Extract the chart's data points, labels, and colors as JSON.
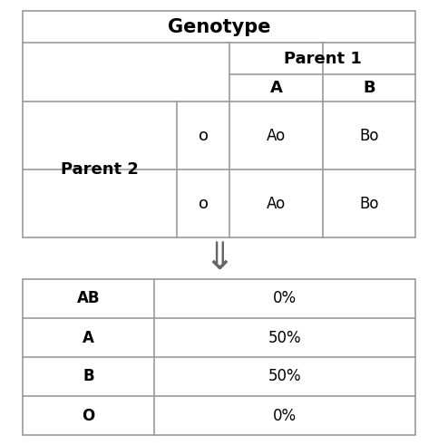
{
  "title": "Genotype",
  "parent1_label": "Parent 1",
  "parent2_label": "Parent 2",
  "parent1_alleles": [
    "A",
    "B"
  ],
  "parent2_alleles": [
    "o",
    "o"
  ],
  "punnett_cells": [
    [
      "Ao",
      "Bo"
    ],
    [
      "Ao",
      "Bo"
    ]
  ],
  "result_labels": [
    "AB",
    "A",
    "B",
    "O"
  ],
  "result_values": [
    "0%",
    "50%",
    "50%",
    "0%"
  ],
  "arrow_symbol": "⇓",
  "bg_color": "#ffffff",
  "border_color": "#999999",
  "text_color": "#000000",
  "title_fontsize": 15,
  "label_fontsize": 13,
  "cell_fontsize": 12,
  "result_fontsize": 12
}
